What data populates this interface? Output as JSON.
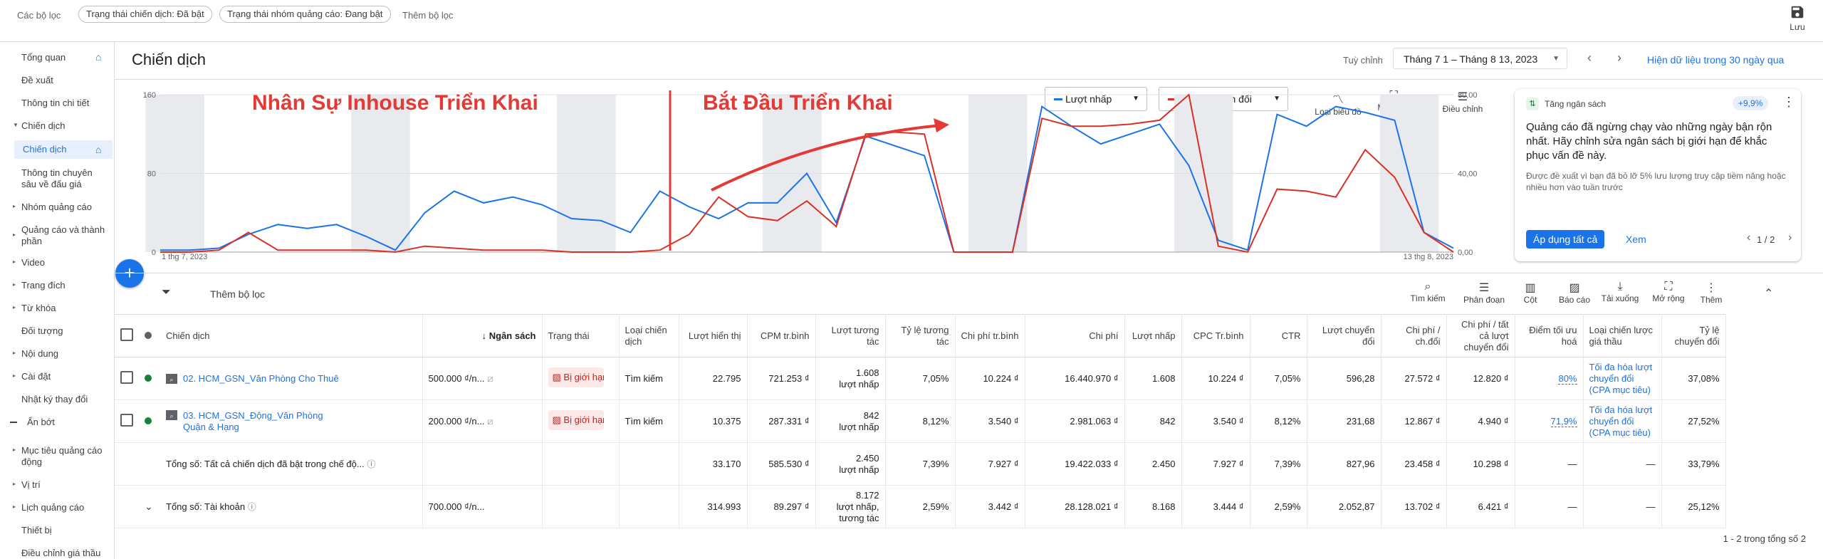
{
  "topbar": {
    "sets_label": "Các bộ lọc",
    "chip1": "Trạng thái chiến dịch: Đã bật",
    "chip2": "Trạng thái nhóm quảng cáo: Đang bật",
    "add_filter": "Thêm bộ lọc",
    "save_label": "Lưu"
  },
  "sidebar": {
    "items": [
      {
        "label": "Tổng quan"
      },
      {
        "label": "Đề xuất"
      },
      {
        "label": "Thông tin chi tiết"
      },
      {
        "label": "Chiến dịch"
      },
      {
        "label": "Chiến dịch"
      },
      {
        "label": "Thông tin chuyên sâu về đấu giá"
      },
      {
        "label": "Nhóm quảng cáo"
      },
      {
        "label": "Quảng cáo và thành phần"
      },
      {
        "label": "Video"
      },
      {
        "label": "Trang đích"
      },
      {
        "label": "Từ khóa"
      },
      {
        "label": "Đối tượng"
      },
      {
        "label": "Nội dung"
      },
      {
        "label": "Cài đặt"
      },
      {
        "label": "Nhật ký thay đổi"
      },
      {
        "label": "Ẩn bớt"
      },
      {
        "label": "Mục tiêu quảng cáo động"
      },
      {
        "label": "Vị trí"
      },
      {
        "label": "Lịch quảng cáo"
      },
      {
        "label": "Thiết bị"
      },
      {
        "label": "Điều chỉnh giá thầu"
      }
    ]
  },
  "header": {
    "title": "Chiến dịch",
    "custom_label": "Tuỳ chỉnh",
    "date_range": "Tháng 7 1 – Tháng 8 13, 2023",
    "last30": "Hiện dữ liệu trong 30 ngày qua"
  },
  "chart_controls": {
    "metric1": "Lượt nhấp",
    "metric2": "Lượt chuyển đổi",
    "tool1": "Loại biểu đồ",
    "tool2": "Mở rộng",
    "tool3": "Điều chỉnh"
  },
  "annotations": {
    "left_text": "Nhân Sự Inhouse Triển Khai",
    "right_text": "Bắt Đầu Triển Khai"
  },
  "colors": {
    "clicks": "#1a73e8",
    "conversions": "#d93025",
    "annotation": "#e53935"
  },
  "chart_data": {
    "type": "line",
    "x_start_label": "1 thg 7, 2023",
    "x_end_label": "13 thg 8, 2023",
    "y_left_ticks": [
      "160",
      "80",
      "0"
    ],
    "y_right_ticks": [
      "80,00",
      "40,00",
      "0,00"
    ],
    "y_left_range": [
      0,
      160
    ],
    "y_right_range": [
      0,
      80
    ],
    "series": [
      {
        "name": "Lượt nhấp",
        "axis": "left",
        "values": [
          2,
          2,
          4,
          18,
          28,
          24,
          28,
          16,
          2,
          40,
          62,
          50,
          56,
          48,
          34,
          32,
          20,
          62,
          46,
          34,
          50,
          50,
          80,
          30,
          118,
          108,
          98,
          0,
          0,
          0,
          148,
          128,
          110,
          120,
          130,
          88,
          12,
          2,
          140,
          128,
          148,
          142,
          134,
          20,
          4
        ]
      },
      {
        "name": "Lượt chuyển đổi",
        "axis": "right",
        "values": [
          0,
          0,
          1,
          10,
          1,
          1,
          1,
          1,
          0,
          3,
          2,
          1,
          1,
          1,
          0,
          0,
          0,
          1,
          9,
          28,
          18,
          16,
          26,
          13,
          60,
          61,
          60,
          0,
          0,
          0,
          68,
          64,
          64,
          65,
          67,
          80,
          3,
          0,
          32,
          31,
          28,
          52,
          38,
          10,
          0
        ]
      }
    ]
  },
  "rec_card": {
    "tag": "Tăng ngân sách",
    "badge": "+9,9%",
    "title": "Quảng cáo đã ngừng chạy vào những ngày bận rộn nhất. Hãy chỉnh sửa ngân sách bị giới hạn để khắc phục vấn đề này.",
    "body": "Được đề xuất vì bạn đã bỏ lỡ 5% lưu lượng truy cập tiềm năng hoặc nhiều hơn vào tuần trước",
    "apply": "Áp dụng tất cả",
    "view": "Xem",
    "page": "1 / 2"
  },
  "filter_row": {
    "add_filter": "Thêm bộ lọc",
    "tools": [
      "Tìm kiếm",
      "Phân đoạn",
      "Cột",
      "Báo cáo",
      "Tải xuống",
      "Mở rộng",
      "Thêm"
    ]
  },
  "table": {
    "headers": [
      "Chiến dịch",
      "Ngân sách",
      "Trạng thái",
      "Loại chiến dịch",
      "Lượt hiển thị",
      "CPM tr.bình",
      "Lượt tương tác",
      "Tỷ lệ tương tác",
      "Chi phí tr.bình",
      "Chi phí",
      "Lượt nhấp",
      "CPC Tr.bình",
      "CTR",
      "Lượt chuyển đổi",
      "Chi phí / ch.đổi",
      "Chi phí / tất cả lượt chuyển đổi",
      "Điểm tối ưu hoá",
      "Loại chiến lược giá thầu",
      "Tỷ lệ chuyển đổi"
    ],
    "rows": [
      {
        "name": "02. HCM_GSN_Văn Phòng Cho Thuê",
        "budget": "500.000 ₫/n...",
        "status": "Bị giới hạn",
        "type": "Tìm kiếm",
        "impr": "22.795",
        "cpm": "721.253 ₫",
        "inter": "1.608",
        "inter_unit": "lượt nhấp",
        "inter_rate": "7,05%",
        "avg_cost": "10.224 ₫",
        "cost": "16.440.970 ₫",
        "clicks": "1.608",
        "cpc": "10.224 ₫",
        "ctr": "7,05%",
        "conv": "596,28",
        "cost_conv": "27.572 ₫",
        "cost_all": "12.820 ₫",
        "opt": "80%",
        "bid": "Tối đa hóa lượt chuyển đổi (CPA mục tiêu)",
        "conv_rate": "37,08%"
      },
      {
        "name": "03. HCM_GSN_Động_Văn Phòng Quận & Hạng",
        "budget": "200.000 ₫/n...",
        "status": "Bị giới hạn",
        "type": "Tìm kiếm",
        "impr": "10.375",
        "cpm": "287.331 ₫",
        "inter": "842",
        "inter_unit": "lượt nhấp",
        "inter_rate": "8,12%",
        "avg_cost": "3.540 ₫",
        "cost": "2.981.063 ₫",
        "clicks": "842",
        "cpc": "3.540 ₫",
        "ctr": "8,12%",
        "conv": "231,68",
        "cost_conv": "12.867 ₫",
        "cost_all": "4.940 ₫",
        "opt": "71,9%",
        "bid": "Tối đa hóa lượt chuyển đổi (CPA mục tiêu)",
        "conv_rate": "27,52%"
      }
    ],
    "total1": {
      "label": "Tổng số: Tất cả chiến dịch đã bật trong chế độ...",
      "impr": "33.170",
      "cpm": "585.530 ₫",
      "inter": "2.450",
      "inter_unit": "lượt nhấp",
      "inter_rate": "7,39%",
      "avg_cost": "7.927 ₫",
      "cost": "19.422.033 ₫",
      "clicks": "2.450",
      "cpc": "7.927 ₫",
      "ctr": "7,39%",
      "conv": "827,96",
      "cost_conv": "23.458 ₫",
      "cost_all": "10.298 ₫",
      "opt": "—",
      "bid": "—",
      "conv_rate": "33,79%"
    },
    "total2": {
      "label": "Tổng số: Tài khoản",
      "budget": "700.000 ₫/n...",
      "impr": "314.993",
      "cpm": "89.297 ₫",
      "inter": "8.172",
      "inter_unit": "lượt nhấp, tương tác",
      "inter_rate": "2,59%",
      "avg_cost": "3.442 ₫",
      "cost": "28.128.021 ₫",
      "clicks": "8.168",
      "cpc": "3.444 ₫",
      "ctr": "2,59%",
      "conv": "2.052,87",
      "cost_conv": "13.702 ₫",
      "cost_all": "6.421 ₫",
      "opt": "—",
      "bid": "—",
      "conv_rate": "25,12%"
    }
  },
  "pagination": "1 - 2 trong tổng số 2"
}
